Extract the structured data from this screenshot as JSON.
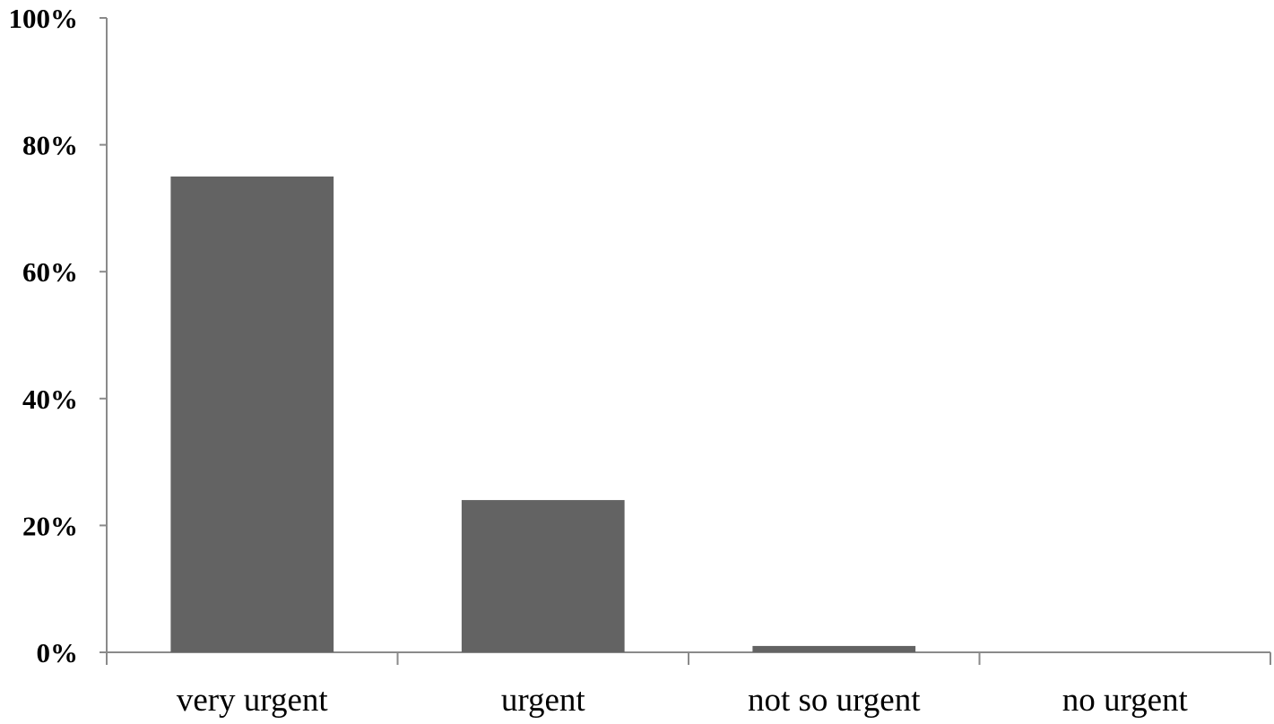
{
  "chart_data": {
    "type": "bar",
    "categories": [
      "very urgent",
      "urgent",
      "not so urgent",
      "no urgent"
    ],
    "values": [
      75,
      24,
      1,
      0
    ],
    "ylim": [
      0,
      100
    ],
    "yticks": [
      0,
      20,
      40,
      60,
      80,
      100
    ],
    "ytick_labels": [
      "0%",
      "20%",
      "40%",
      "60%",
      "80%",
      "100%"
    ],
    "bar_color": "#636363",
    "axis_color": "#8a8a8a",
    "grid": false,
    "legend": "none"
  }
}
